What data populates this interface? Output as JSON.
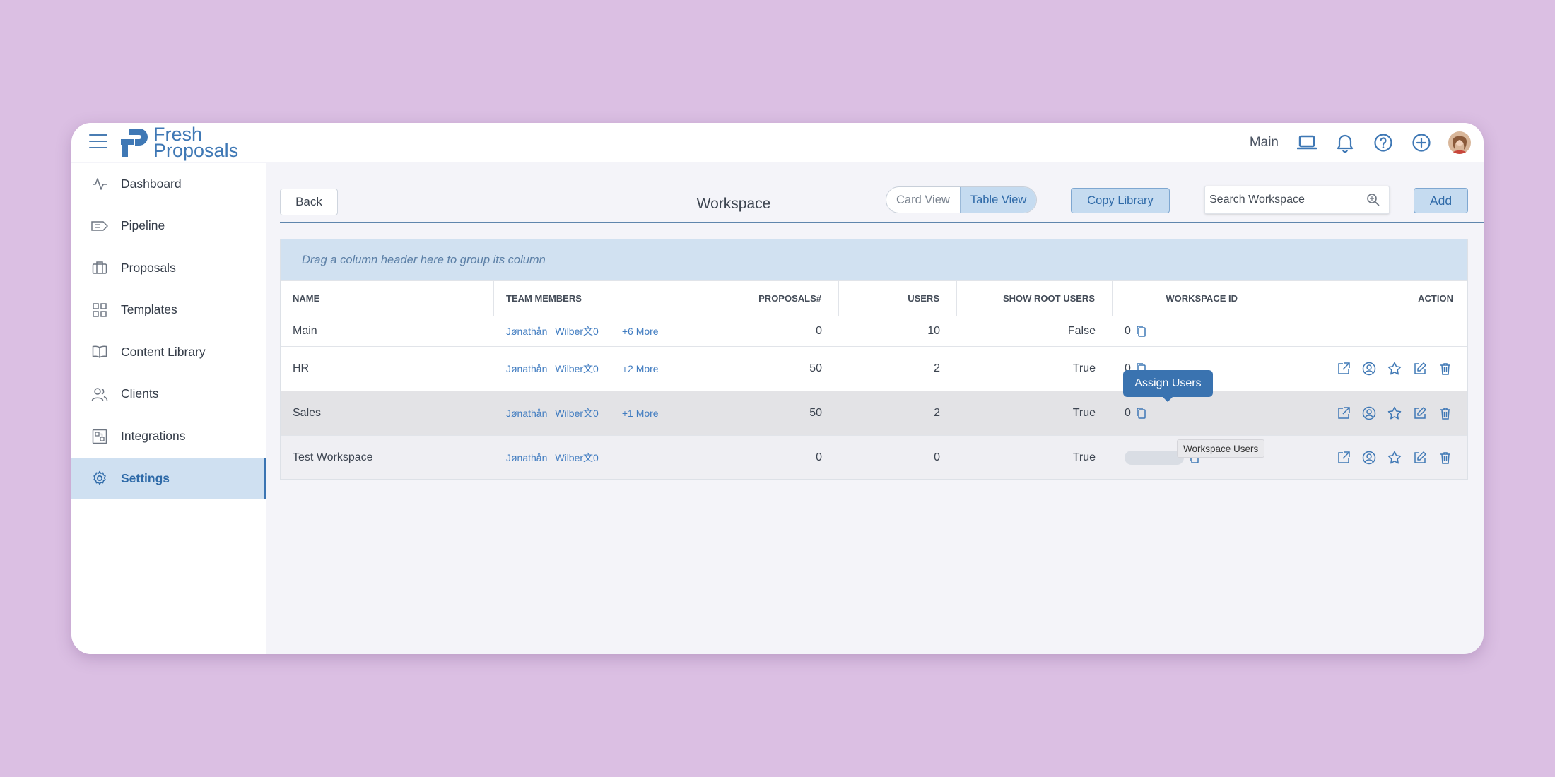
{
  "app": {
    "logo_line1": "Fresh",
    "logo_line2": "Proposals",
    "current_workspace": "Main",
    "brand_color": "#3f78b5",
    "accent_bg": "#c5dbf0"
  },
  "topbar_icons": [
    "menu-icon",
    "laptop-icon",
    "bell-icon",
    "help-icon",
    "plus-circle-icon",
    "avatar"
  ],
  "sidebar": {
    "items": [
      {
        "label": "Dashboard",
        "icon": "activity-icon"
      },
      {
        "label": "Pipeline",
        "icon": "tag-icon"
      },
      {
        "label": "Proposals",
        "icon": "briefcase-icon"
      },
      {
        "label": "Templates",
        "icon": "grid-icon"
      },
      {
        "label": "Content Library",
        "icon": "book-icon"
      },
      {
        "label": "Clients",
        "icon": "users-icon"
      },
      {
        "label": "Integrations",
        "icon": "integrations-icon"
      },
      {
        "label": "Settings",
        "icon": "gear-icon",
        "active": true
      }
    ]
  },
  "toolbar": {
    "back_label": "Back",
    "title": "Workspace",
    "card_view_label": "Card View",
    "table_view_label": "Table View",
    "active_view": "Table View",
    "copy_library_label": "Copy Library",
    "search_placeholder": "Search Workspace",
    "add_label": "Add"
  },
  "grid": {
    "group_hint": "Drag a column header here to group its column",
    "columns": [
      "NAME",
      "TEAM MEMBERS",
      "PROPOSALS#",
      "USERS",
      "SHOW ROOT USERS",
      "WORKSPACE ID",
      "ACTION"
    ],
    "rows": [
      {
        "name": "Main",
        "member1": "Jønathån",
        "member2": "Wilber文0",
        "more": "+6 More",
        "proposals": "0",
        "users": "10",
        "show_root": "False",
        "workspace_id": "0"
      },
      {
        "name": "HR",
        "member1": "Jønathån",
        "member2": "Wilber文0",
        "more": "+2 More",
        "proposals": "50",
        "users": "2",
        "show_root": "True",
        "workspace_id": "0"
      },
      {
        "name": "Sales",
        "member1": "Jønathån",
        "member2": "Wilber文0",
        "more": "+1 More",
        "proposals": "50",
        "users": "2",
        "show_root": "True",
        "workspace_id": "0"
      },
      {
        "name": "Test Workspace",
        "member1": "Jønathån",
        "member2": "Wilber文0",
        "more": "",
        "proposals": "0",
        "users": "0",
        "show_root": "True",
        "workspace_id": ""
      }
    ],
    "action_icons": [
      "open-external-icon",
      "assign-users-icon",
      "star-icon",
      "edit-icon",
      "trash-icon"
    ]
  },
  "tooltip": {
    "label": "Assign Users"
  },
  "hint": {
    "label": "Workspace Users"
  }
}
